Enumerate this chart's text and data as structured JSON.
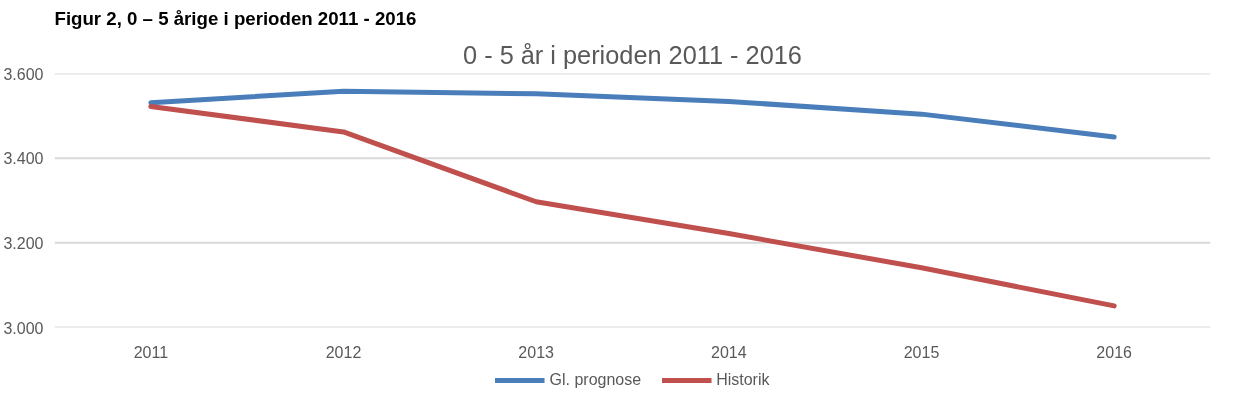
{
  "chart_data": {
    "type": "line",
    "title": "0 - 5 år i perioden 2011 - 2016",
    "annotations": [
      "Figur 2, 0 – 5 årige i perioden 2011 - 2016"
    ],
    "categories": [
      "2011",
      "2012",
      "2013",
      "2014",
      "2015",
      "2016"
    ],
    "series": [
      {
        "name": "Gl. prognose",
        "color": "#4a7ebb",
        "values": [
          3531,
          3558,
          3552,
          3534,
          3504,
          3450
        ]
      },
      {
        "name": "Historik",
        "color": "#c0504d",
        "values": [
          3522,
          3462,
          3297,
          3222,
          3141,
          3051
        ]
      }
    ],
    "ylim": [
      3000,
      3600
    ],
    "yticks": [
      {
        "value": 3000,
        "label": "3.000"
      },
      {
        "value": 3200,
        "label": "3.200"
      },
      {
        "value": 3400,
        "label": "3.400"
      },
      {
        "value": 3600,
        "label": "3.600"
      }
    ],
    "grid": "y",
    "legend": "bottom",
    "marker": "none",
    "line_style": "solid"
  }
}
